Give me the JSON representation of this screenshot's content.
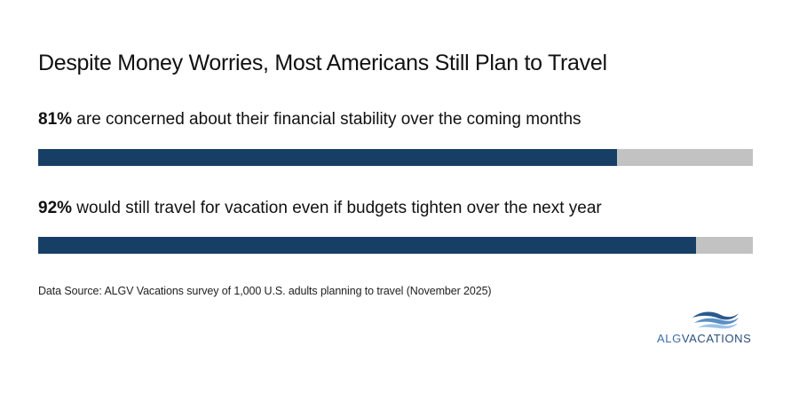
{
  "chart_data": {
    "type": "bar",
    "title": "Despite Money Worries, Most Americans Still Plan to Travel",
    "orientation": "horizontal",
    "xlim": [
      0,
      100
    ],
    "unit": "%",
    "items": [
      {
        "value": 81,
        "value_label": "81%",
        "text": " are concerned about their financial stability over the coming months"
      },
      {
        "value": 92,
        "value_label": "92%",
        "text": " would still travel for vacation even if budgets tighten over the next year"
      }
    ],
    "colors": {
      "fill": "#173f66",
      "track": "#c2c2c2"
    },
    "source": "Data Source: ALGV Vacations survey of 1,000 U.S. adults planning to travel (November 2025)"
  },
  "logo": {
    "text_a": "ALG",
    "text_b": "VACATIONS",
    "mark": "waves-logo-icon"
  }
}
